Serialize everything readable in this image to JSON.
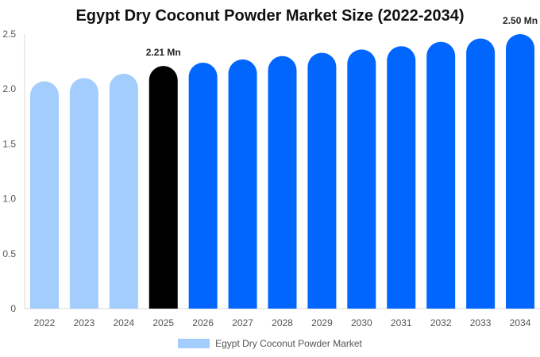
{
  "chart_data": {
    "type": "bar",
    "title": "Egypt Dry Coconut Powder Market Size (2022-2034)",
    "categories": [
      "2022",
      "2023",
      "2024",
      "2025",
      "2026",
      "2027",
      "2028",
      "2029",
      "2030",
      "2031",
      "2032",
      "2033",
      "2034"
    ],
    "series": [
      {
        "name": "Egypt Dry Coconut Powder Market",
        "values": [
          2.07,
          2.1,
          2.14,
          2.21,
          2.24,
          2.27,
          2.3,
          2.33,
          2.36,
          2.39,
          2.43,
          2.46,
          2.5
        ]
      }
    ],
    "colors": [
      "#a3cdfc",
      "#a3cdfc",
      "#a3cdfc",
      "#000000",
      "#0166fe",
      "#0166fe",
      "#0166fe",
      "#0166fe",
      "#0166fe",
      "#0166fe",
      "#0166fe",
      "#0166fe",
      "#0166fe"
    ],
    "legend_color": "#a3cdfc",
    "data_labels": [
      {
        "category": "2025",
        "text": "2.21 Mn"
      },
      {
        "category": "2034",
        "text": "2.50 Mn"
      }
    ],
    "yticks": [
      "0",
      "0.5",
      "1.0",
      "1.5",
      "2.0",
      "2.5"
    ],
    "ytick_values": [
      0,
      0.5,
      1.0,
      1.5,
      2.0,
      2.5
    ],
    "ylim": [
      0,
      2.5
    ],
    "xlabel": "",
    "ylabel": "",
    "grid": false,
    "legend_position": "bottom"
  }
}
